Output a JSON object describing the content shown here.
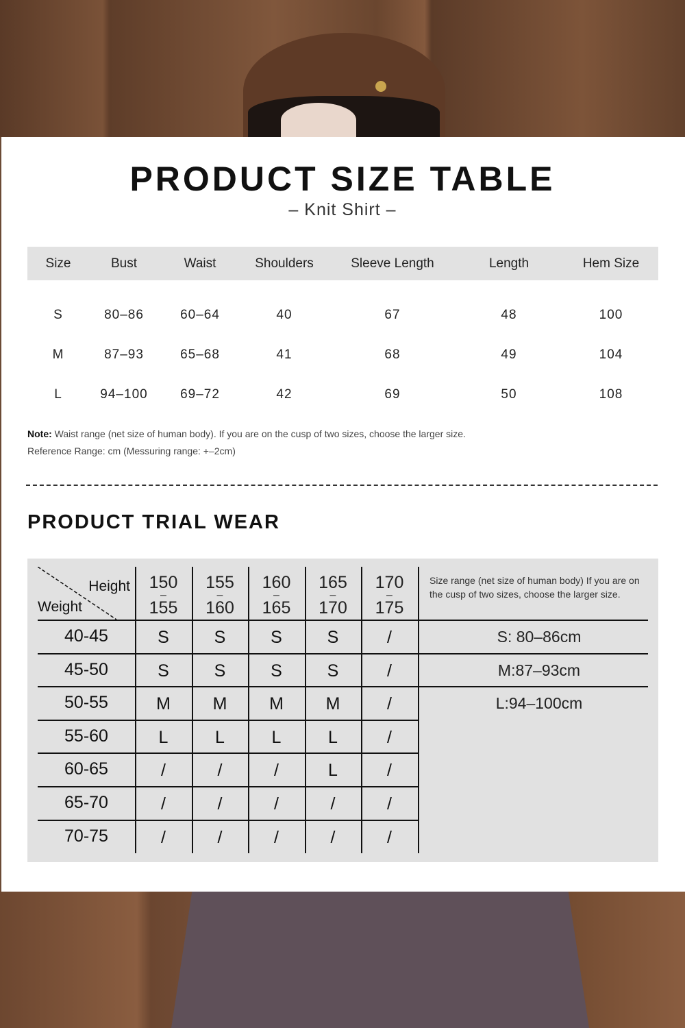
{
  "title": "PRODUCT SIZE TABLE",
  "subtitle": "– Knit Shirt –",
  "size_table": {
    "headers": [
      "Size",
      "Bust",
      "Waist",
      "Shoulders",
      "Sleeve Length",
      "Length",
      "Hem Size"
    ],
    "rows": [
      [
        "S",
        "80–86",
        "60–64",
        "40",
        "67",
        "48",
        "100"
      ],
      [
        "M",
        "87–93",
        "65–68",
        "41",
        "68",
        "49",
        "104"
      ],
      [
        "L",
        "94–100",
        "69–72",
        "42",
        "69",
        "50",
        "108"
      ]
    ]
  },
  "note": {
    "label": "Note:",
    "text": " Waist range (net size of human body). If you are on the cusp of two sizes, choose the larger size.",
    "reference": "Reference Range: cm (Messuring range: +–2cm)"
  },
  "trial": {
    "title": "PRODUCT TRIAL WEAR",
    "corner_height": "Height",
    "corner_weight": "Weight",
    "heights": [
      [
        "150",
        "155"
      ],
      [
        "155",
        "160"
      ],
      [
        "160",
        "165"
      ],
      [
        "165",
        "170"
      ],
      [
        "170",
        "175"
      ]
    ],
    "info": "Size range (net size of human body) If you are on the cusp of two sizes, choose the larger size.",
    "rows": [
      {
        "weight": "40-45",
        "sizes": [
          "S",
          "S",
          "S",
          "S",
          "/"
        ]
      },
      {
        "weight": "45-50",
        "sizes": [
          "S",
          "S",
          "S",
          "S",
          "/"
        ]
      },
      {
        "weight": "50-55",
        "sizes": [
          "M",
          "M",
          "M",
          "M",
          "/"
        ]
      },
      {
        "weight": "55-60",
        "sizes": [
          "L",
          "L",
          "L",
          "L",
          "/"
        ]
      },
      {
        "weight": "60-65",
        "sizes": [
          "/",
          "/",
          "/",
          "L",
          "/"
        ]
      },
      {
        "weight": "65-70",
        "sizes": [
          "/",
          "/",
          "/",
          "/",
          "/"
        ]
      },
      {
        "weight": "70-75",
        "sizes": [
          "/",
          "/",
          "/",
          "/",
          "/"
        ]
      }
    ],
    "ranges": [
      "S: 80–86cm",
      "M:87–93cm",
      "L:94–100cm"
    ]
  }
}
